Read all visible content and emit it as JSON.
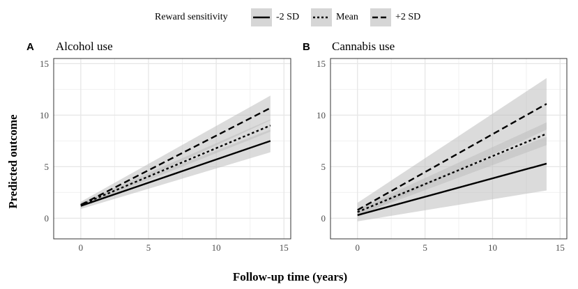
{
  "legend": {
    "title": "Reward sensitivity",
    "items": [
      {
        "label": "-2 SD",
        "dash": "solid"
      },
      {
        "label": "Mean",
        "dash": "dotted"
      },
      {
        "label": "+2 SD",
        "dash": "dashed"
      }
    ]
  },
  "xlabel": "Follow-up time (years)",
  "ylabel": "Predicted outcome",
  "colors": {
    "line": "#000000",
    "band": "#bdbdbd",
    "grid": "#e6e6e6",
    "panel": "#ffffff",
    "border": "#333333"
  },
  "chart_data": [
    {
      "type": "line",
      "panel_label": "A",
      "title": "Alcohol use",
      "xlim": [
        -2,
        15.5
      ],
      "ylim": [
        -2,
        15.5
      ],
      "xticks": [
        0,
        5,
        10,
        15
      ],
      "yticks": [
        0,
        5,
        10,
        15
      ],
      "x": [
        0,
        14
      ],
      "series": [
        {
          "name": "-2 SD",
          "values": [
            1.2,
            7.5
          ],
          "ci_low": [
            0.9,
            6.4
          ],
          "ci_high": [
            1.5,
            8.6
          ]
        },
        {
          "name": "Mean",
          "values": [
            1.3,
            9.0
          ],
          "ci_low": [
            1.1,
            8.4
          ],
          "ci_high": [
            1.5,
            9.6
          ]
        },
        {
          "name": "+2 SD",
          "values": [
            1.3,
            10.7
          ],
          "ci_low": [
            1.0,
            9.5
          ],
          "ci_high": [
            1.6,
            11.9
          ]
        }
      ]
    },
    {
      "type": "line",
      "panel_label": "B",
      "title": "Cannabis use",
      "xlim": [
        -2,
        15.5
      ],
      "ylim": [
        -2,
        15.5
      ],
      "xticks": [
        0,
        5,
        10,
        15
      ],
      "yticks": [
        0,
        5,
        10,
        15
      ],
      "x": [
        0,
        14
      ],
      "series": [
        {
          "name": "-2 SD",
          "values": [
            0.3,
            5.3
          ],
          "ci_low": [
            -0.3,
            2.7
          ],
          "ci_high": [
            0.9,
            7.9
          ]
        },
        {
          "name": "Mean",
          "values": [
            0.6,
            8.2
          ],
          "ci_low": [
            0.3,
            7.1
          ],
          "ci_high": [
            0.9,
            9.3
          ]
        },
        {
          "name": "+2 SD",
          "values": [
            0.8,
            11.1
          ],
          "ci_low": [
            0.1,
            8.6
          ],
          "ci_high": [
            1.5,
            13.6
          ]
        }
      ]
    }
  ]
}
